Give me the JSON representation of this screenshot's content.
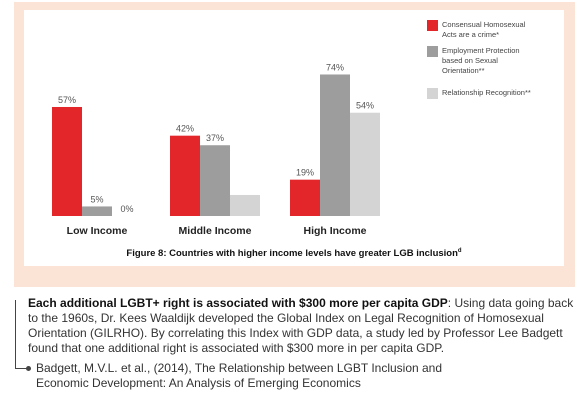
{
  "chart_data": {
    "type": "bar",
    "title": "Figure 8: Countries with higher income levels have greater LGB inclusion",
    "title_superscript": "d",
    "categories": [
      "Low Income",
      "Middle Income",
      "High Income"
    ],
    "series": [
      {
        "name": "Consensual Homosexual Acts are a crime*",
        "values": [
          57,
          42,
          19
        ],
        "labels": [
          "57%",
          "42%",
          "19%"
        ],
        "color": "#e3262a"
      },
      {
        "name": "Employment Protection based on Sexual Orientation**",
        "values": [
          5,
          37,
          74
        ],
        "labels": [
          "5%",
          "37%",
          "74%"
        ],
        "color": "#9d9d9d"
      },
      {
        "name": "Relationship Recognition**",
        "values": [
          0,
          11,
          54
        ],
        "labels": [
          "0%",
          "",
          "54%"
        ],
        "color": "#d4d4d4"
      }
    ],
    "ylim": [
      0,
      80
    ],
    "grid": false,
    "legend_position": "right",
    "legend_lines": [
      [
        "Consensual Homosexual",
        "Acts are a crime*"
      ],
      [
        "Employment Protection",
        "based on Sexual",
        "Orientation**"
      ],
      [
        "Relationship Recognition**"
      ]
    ]
  },
  "body": {
    "lead": "Each additional LGBT+ right is associated with $300 more per capita GDP",
    "text": ": Using data going back to the 1960s, Dr. Kees Waaldijk developed the Global Index on Legal Recognition of Homosexual Orientation (GILRHO). By correlating this Index with GDP data, a study led by Professor Lee Badgett found that one additional right is associated with $300 more in per capita GDP."
  },
  "reference": {
    "text": "Badgett, M.V.L. et al., (2014), The Relationship between LGBT Inclusion and Economic Development: An Analysis of Emerging Economics"
  }
}
